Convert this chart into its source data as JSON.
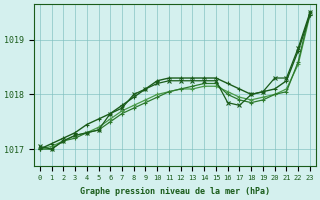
{
  "title": "Graphe pression niveau de la mer (hPa)",
  "xlabel_hours": [
    0,
    1,
    2,
    3,
    4,
    5,
    6,
    7,
    8,
    9,
    10,
    11,
    12,
    13,
    14,
    15,
    16,
    17,
    18,
    19,
    20,
    21,
    22,
    23
  ],
  "line1": [
    1017.0,
    1017.1,
    1017.2,
    1017.3,
    1017.45,
    1017.55,
    1017.65,
    1017.8,
    1017.95,
    1018.1,
    1018.25,
    1018.3,
    1018.3,
    1018.3,
    1018.3,
    1018.3,
    1018.2,
    1018.1,
    1018.0,
    1018.05,
    1018.1,
    1018.25,
    1018.8,
    1019.45
  ],
  "line2": [
    1017.0,
    1017.0,
    1017.15,
    1017.2,
    1017.3,
    1017.35,
    1017.5,
    1017.65,
    1017.75,
    1017.85,
    1017.95,
    1018.05,
    1018.1,
    1018.15,
    1018.2,
    1018.2,
    1018.0,
    1017.9,
    1017.85,
    1017.9,
    1018.0,
    1018.05,
    1018.6,
    1019.5
  ],
  "line3": [
    1017.0,
    1017.05,
    1017.15,
    1017.25,
    1017.3,
    1017.4,
    1017.55,
    1017.7,
    1017.8,
    1017.9,
    1018.0,
    1018.05,
    1018.1,
    1018.1,
    1018.15,
    1018.15,
    1018.05,
    1017.95,
    1017.9,
    1017.95,
    1018.0,
    1018.1,
    1018.55,
    1019.45
  ],
  "line4": [
    1017.05,
    1017.0,
    1017.15,
    1017.25,
    1017.3,
    1017.35,
    1017.65,
    1017.75,
    1018.0,
    1018.1,
    1018.2,
    1018.25,
    1018.25,
    1018.25,
    1018.25,
    1018.25,
    1017.85,
    1017.8,
    1018.0,
    1018.05,
    1018.3,
    1018.3,
    1018.85,
    1019.5
  ],
  "color1": "#1a5c1a",
  "color2": "#2d7a2d",
  "color3": "#4a9a4a",
  "color4": "#1a5c1a",
  "bg_color": "#d4f0ee",
  "grid_color": "#7fbfbf",
  "label_color": "#1a5c1a",
  "ylim_min": 1016.7,
  "ylim_max": 1019.65,
  "yticks": [
    1017,
    1018,
    1019
  ],
  "figsize": [
    3.2,
    2.0
  ],
  "dpi": 100
}
